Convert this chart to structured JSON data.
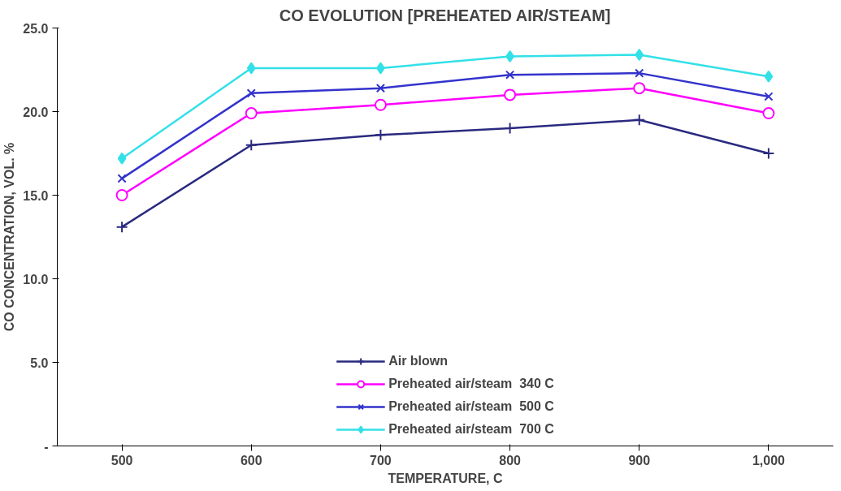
{
  "chart_data": {
    "type": "line",
    "title": "CO EVOLUTION [PREHEATED AIR/STEAM]",
    "xlabel": "TEMPERATURE, C",
    "ylabel": "CO CONCENTRATION, VOL. %",
    "categories": [
      "500",
      "600",
      "700",
      "800",
      "900",
      "1,000"
    ],
    "ylim": [
      0,
      25
    ],
    "yticks": [
      {
        "value": 0,
        "label": "-"
      },
      {
        "value": 5,
        "label": "5.0"
      },
      {
        "value": 10,
        "label": "10.0"
      },
      {
        "value": 15,
        "label": "15.0"
      },
      {
        "value": 20,
        "label": "20.0"
      },
      {
        "value": 25,
        "label": "25.0"
      }
    ],
    "grid": false,
    "legend": "bottom",
    "line_style": "solid",
    "series": [
      {
        "name": "Air blown",
        "color": "#2a2a80",
        "marker": "cross",
        "values": [
          13.1,
          18.0,
          18.6,
          19.0,
          19.5,
          17.5
        ]
      },
      {
        "name": "Preheated air/steam  340 C",
        "color": "#ff00ff",
        "marker": "circle",
        "values": [
          15.0,
          19.9,
          20.4,
          21.0,
          21.4,
          19.9
        ]
      },
      {
        "name": "Preheated air/steam  500 C",
        "color": "#3333cc",
        "marker": "x",
        "values": [
          16.0,
          21.1,
          21.4,
          22.2,
          22.3,
          20.9
        ]
      },
      {
        "name": "Preheated air/steam  700 C",
        "color": "#33e0e8",
        "marker": "diamond",
        "values": [
          17.2,
          22.6,
          22.6,
          23.3,
          23.4,
          22.1
        ]
      }
    ]
  }
}
